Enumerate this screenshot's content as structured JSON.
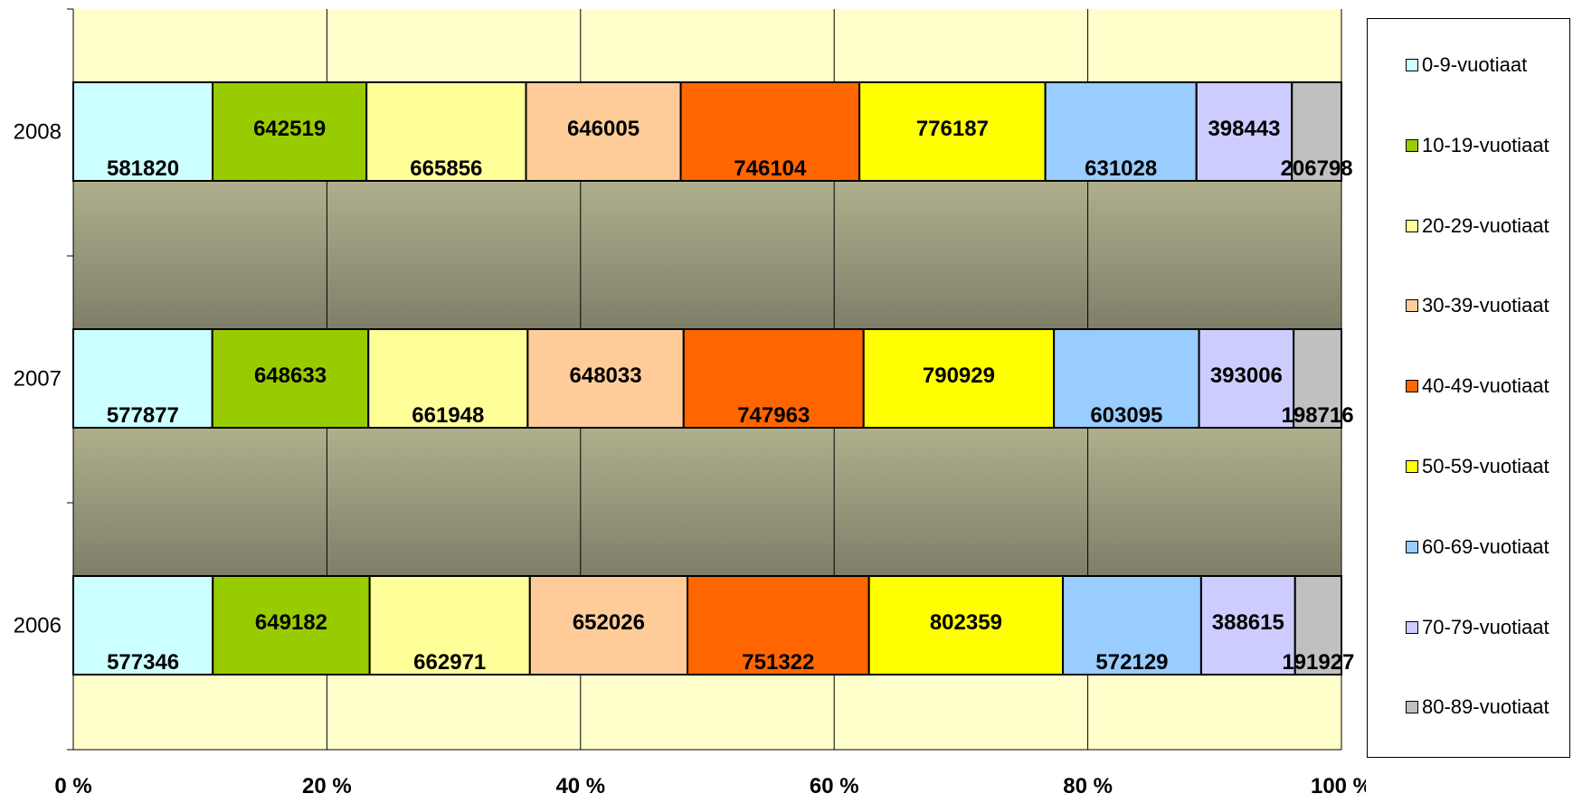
{
  "chart_data": {
    "type": "bar",
    "orientation": "horizontal",
    "stacking": "percent",
    "categories": [
      "2008",
      "2007",
      "2006"
    ],
    "series": [
      {
        "name": "0-9-vuotiaat",
        "color": "#ccffff",
        "values": [
          581820,
          577877,
          577346
        ]
      },
      {
        "name": "10-19-vuotiaat",
        "color": "#99cc00",
        "values": [
          642519,
          648633,
          649182
        ]
      },
      {
        "name": "20-29-vuotiaat",
        "color": "#ffff99",
        "values": [
          665856,
          661948,
          662971
        ]
      },
      {
        "name": "30-39-vuotiaat",
        "color": "#ffcc99",
        "values": [
          646005,
          648033,
          652026
        ]
      },
      {
        "name": "40-49-vuotiaat",
        "color": "#ff6600",
        "values": [
          746104,
          747963,
          751322
        ]
      },
      {
        "name": "50-59-vuotiaat",
        "color": "#ffff00",
        "values": [
          776187,
          790929,
          802359
        ]
      },
      {
        "name": "60-69-vuotiaat",
        "color": "#99ccff",
        "values": [
          631028,
          603095,
          572129
        ]
      },
      {
        "name": "70-79-vuotiaat",
        "color": "#ccccff",
        "values": [
          398443,
          393006,
          388615
        ]
      },
      {
        "name": "80-89-vuotiaat",
        "color": "#c0c0c0",
        "values": [
          206798,
          198716,
          191927
        ]
      }
    ],
    "x_ticks": [
      "0 %",
      "20 %",
      "40 %",
      "60 %",
      "80 %",
      "100 %"
    ],
    "xlim": [
      0,
      100
    ],
    "grid": true,
    "legend_position": "right",
    "data_labels": true
  }
}
